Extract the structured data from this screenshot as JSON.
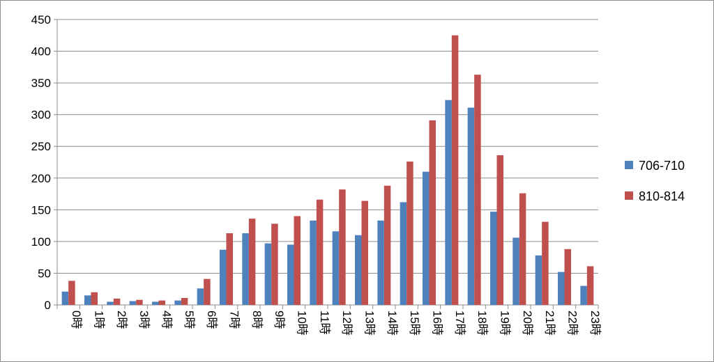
{
  "chart_data": {
    "type": "bar",
    "title": "",
    "xlabel": "",
    "ylabel": "",
    "ylim": [
      0,
      450
    ],
    "yticks": [
      0,
      50,
      100,
      150,
      200,
      250,
      300,
      350,
      400,
      450
    ],
    "ytick_labels": [
      "0",
      "50",
      "100",
      "150",
      "200",
      "250",
      "300",
      "350",
      "400",
      "450"
    ],
    "grid": "horizontal",
    "legend_position": "right",
    "categories": [
      "0時",
      "1時",
      "2時",
      "3時",
      "4時",
      "5時",
      "6時",
      "7時",
      "8時",
      "9時",
      "10時",
      "11時",
      "12時",
      "13時",
      "14時",
      "15時",
      "16時",
      "17時",
      "18時",
      "19時",
      "20時",
      "21時",
      "22時",
      "23時"
    ],
    "series": [
      {
        "name": "706-710",
        "color": "#4f81bd",
        "values": [
          21,
          15,
          5,
          6,
          5,
          7,
          26,
          87,
          113,
          97,
          95,
          133,
          116,
          110,
          133,
          162,
          210,
          323,
          311,
          147,
          106,
          78,
          52,
          30
        ]
      },
      {
        "name": "810-814",
        "color": "#c0504d",
        "values": [
          38,
          20,
          10,
          8,
          7,
          11,
          41,
          113,
          136,
          128,
          140,
          166,
          182,
          164,
          188,
          226,
          291,
          425,
          363,
          236,
          176,
          131,
          88,
          61
        ]
      }
    ]
  }
}
